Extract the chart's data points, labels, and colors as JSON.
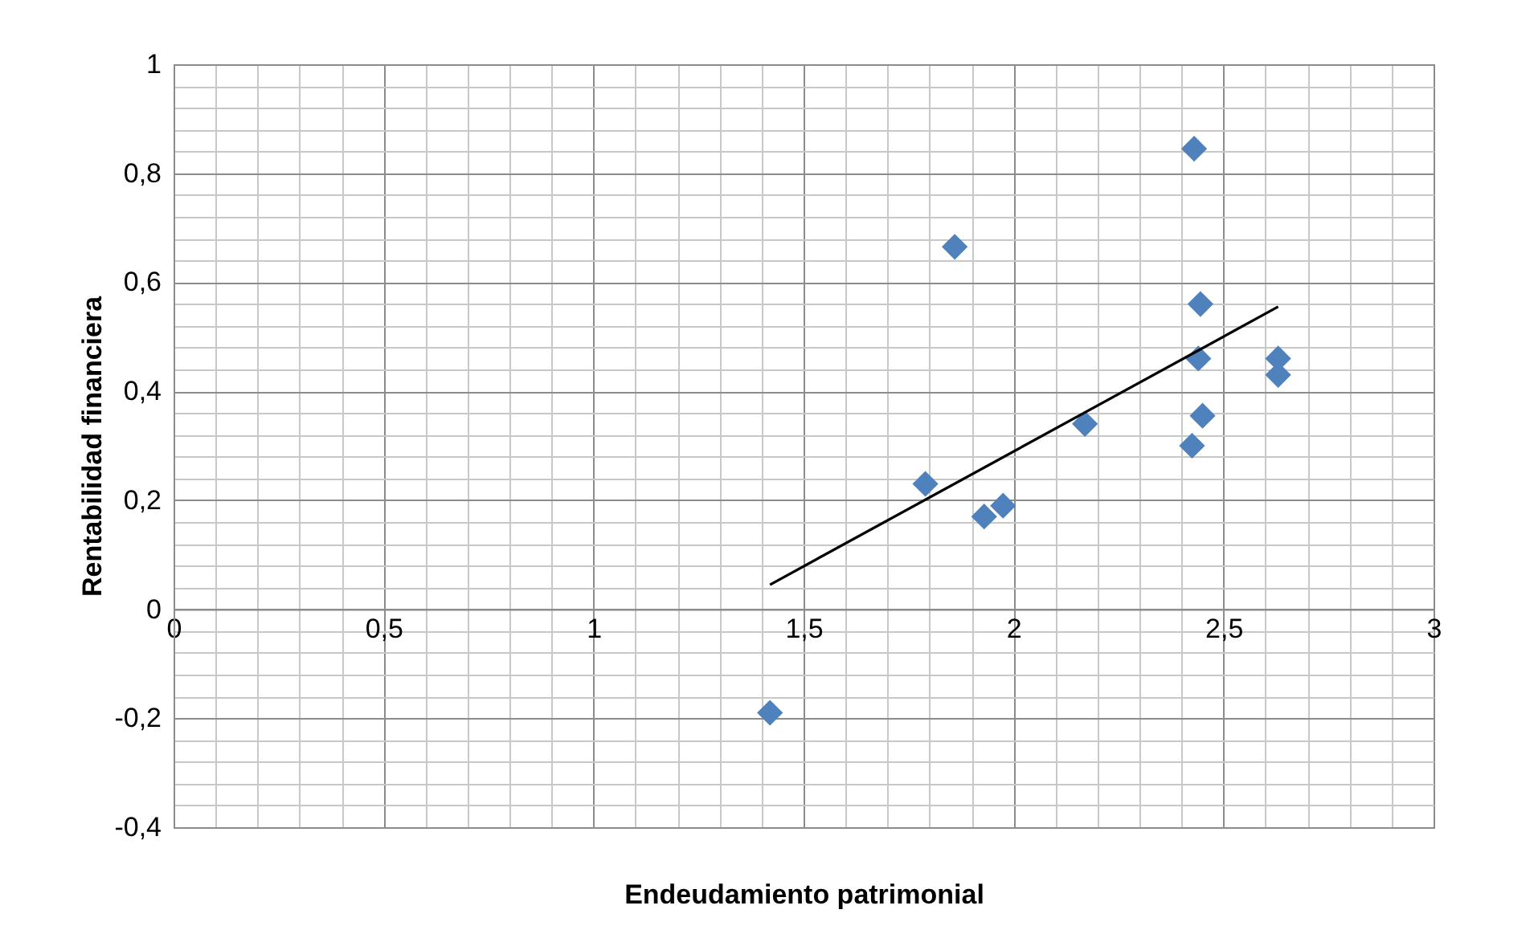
{
  "chart_data": {
    "type": "scatter",
    "xlabel": "Endeudamiento patrimonial",
    "ylabel": "Rentabilidad financiera",
    "xlim": [
      0,
      3
    ],
    "ylim": [
      -0.4,
      1
    ],
    "xticks": [
      0,
      {
        "value": 0.5,
        "label": "0,5"
      },
      1,
      {
        "value": 1.5,
        "label": "1,5"
      },
      2,
      {
        "value": 2.5,
        "label": "2,5"
      },
      3
    ],
    "yticks": [
      {
        "value": -0.4,
        "label": "-0,4"
      },
      {
        "value": -0.2,
        "label": "-0,2"
      },
      0,
      {
        "value": 0.2,
        "label": "0,2"
      },
      {
        "value": 0.4,
        "label": "0,4"
      },
      {
        "value": 0.6,
        "label": "0,6"
      },
      {
        "value": 0.8,
        "label": "0,8"
      },
      1
    ],
    "grid": true,
    "marker": "diamond",
    "series": [
      {
        "type": "scatter",
        "color": "#4f81bd",
        "x": [
          1.42,
          1.79,
          1.86,
          1.93,
          1.975,
          2.17,
          2.43,
          2.445,
          2.44,
          2.45,
          2.425,
          2.63,
          2.63
        ],
        "values": [
          -0.19,
          0.23,
          0.665,
          0.17,
          0.19,
          0.34,
          0.845,
          0.56,
          0.46,
          0.355,
          0.3,
          0.46,
          0.43
        ]
      },
      {
        "type": "line",
        "marker": "none",
        "color": "#000000",
        "x": [
          1.42,
          2.63
        ],
        "values": [
          0.045,
          0.555
        ]
      }
    ]
  }
}
